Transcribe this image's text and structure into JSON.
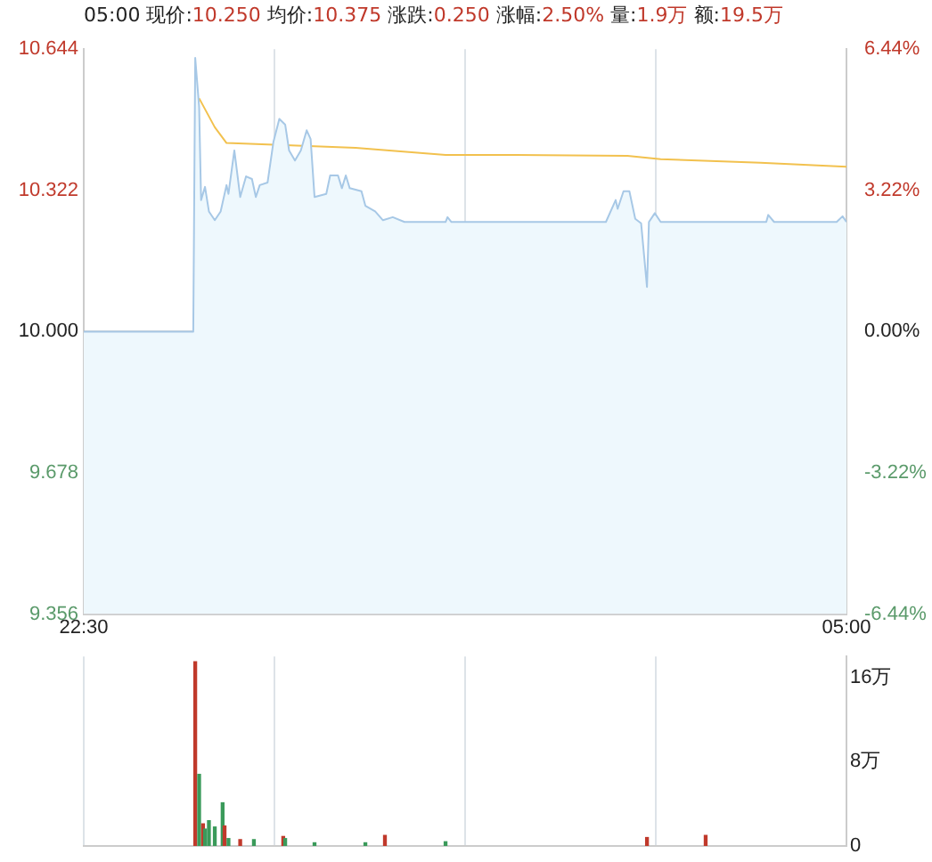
{
  "chart_data": [
    {
      "type": "line",
      "title": "05:00 现价:10.250 均价:10.375 涨跌:0.250 涨幅:2.50% 量:1.9万 额:19.5万",
      "series": [
        {
          "type": "area",
          "color": "#a7c8e6",
          "x": [
            "2000-01-01T22:30",
            "2000-01-01T23:26",
            "2000-01-01T23:27",
            "2000-01-01T23:29",
            "2000-01-01T23:30",
            "2000-01-01T23:32",
            "2000-01-01T23:34",
            "2000-01-01T23:37",
            "2000-01-01T23:40",
            "2000-01-01T23:43",
            "2000-01-01T23:44",
            "2000-01-01T23:47",
            "2000-01-01T23:50",
            "2000-01-01T23:53",
            "2000-01-01T23:56",
            "2000-01-01T23:58",
            "2000-01-02T00:00",
            "2000-01-02T00:04",
            "2000-01-02T00:07",
            "2000-01-02T00:10",
            "2000-01-02T00:13",
            "2000-01-02T00:15",
            "2000-01-02T00:18",
            "2000-01-02T00:21",
            "2000-01-02T00:24",
            "2000-01-02T00:26",
            "2000-01-02T00:28",
            "2000-01-02T00:34",
            "2000-01-02T00:36",
            "2000-01-02T00:40",
            "2000-01-02T00:42",
            "2000-01-02T00:44",
            "2000-01-02T00:46",
            "2000-01-02T00:52",
            "2000-01-02T00:54",
            "2000-01-02T00:59",
            "2000-01-02T01:03",
            "2000-01-02T01:08",
            "2000-01-02T01:14",
            "2000-01-02T01:35",
            "2000-01-02T01:36",
            "2000-01-02T01:38",
            "2000-01-02T02:30",
            "2000-01-02T02:57",
            "2000-01-02T03:02",
            "2000-01-02T03:03",
            "2000-01-02T03:06",
            "2000-01-02T03:09",
            "2000-01-02T03:12",
            "2000-01-02T03:15",
            "2000-01-02T03:18",
            "2000-01-02T03:19",
            "2000-01-02T03:22",
            "2000-01-02T03:25",
            "2000-01-02T04:19",
            "2000-01-02T04:20",
            "2000-01-02T04:23",
            "2000-01-02T04:55",
            "2000-01-02T04:58",
            "2000-01-02T05:00"
          ],
          "values": [
            10.0,
            10.0,
            10.624,
            10.512,
            10.3,
            10.33,
            10.274,
            10.254,
            10.274,
            10.334,
            10.314,
            10.413,
            10.307,
            10.354,
            10.348,
            10.307,
            10.334,
            10.34,
            10.433,
            10.485,
            10.472,
            10.413,
            10.39,
            10.413,
            10.459,
            10.439,
            10.307,
            10.314,
            10.356,
            10.356,
            10.327,
            10.356,
            10.327,
            10.32,
            10.287,
            10.274,
            10.254,
            10.261,
            10.25,
            10.25,
            10.261,
            10.25,
            10.25,
            10.25,
            10.3,
            10.28,
            10.32,
            10.32,
            10.257,
            10.247,
            10.102,
            10.25,
            10.27,
            10.25,
            10.25,
            10.266,
            10.25,
            10.25,
            10.263,
            10.25
          ]
        },
        {
          "type": "line",
          "color": "#f2c14e",
          "x": [
            "2000-01-01T23:29",
            "2000-01-01T23:37",
            "2000-01-01T23:43",
            "2000-01-02T00:07",
            "2000-01-02T00:49",
            "2000-01-02T01:35",
            "2000-01-02T02:11",
            "2000-01-02T03:08",
            "2000-01-02T03:25",
            "2000-01-02T04:16",
            "2000-01-02T05:00"
          ],
          "values": [
            10.532,
            10.466,
            10.43,
            10.426,
            10.419,
            10.403,
            10.403,
            10.401,
            10.393,
            10.385,
            10.376
          ]
        }
      ],
      "xlim": [
        "2000-01-01T22:30",
        "2000-01-02T05:00"
      ],
      "xticks": [
        {
          "value": "2000-01-01T22:30",
          "label": "22:30"
        },
        {
          "value": "2000-01-02T00:07:30",
          "label": null
        },
        {
          "value": "2000-01-02T01:45",
          "label": null
        },
        {
          "value": "2000-01-02T03:22:30",
          "label": null
        },
        {
          "value": "2000-01-02T05:00",
          "label": "05:00"
        }
      ],
      "ylim": [
        9.356,
        10.644
      ],
      "yticks": [
        9.356,
        9.678,
        {
          "value": 10,
          "label": "10.000"
        },
        10.322,
        10.644
      ],
      "y2lim": [
        -6.44,
        6.44
      ],
      "y2ticks": [
        {
          "value": -6.44,
          "label": "-6.44%"
        },
        {
          "value": -3.22,
          "label": "-3.22%"
        },
        {
          "value": 0,
          "label": "0.00%"
        },
        {
          "value": 3.22,
          "label": "3.22%"
        },
        {
          "value": 6.44,
          "label": "6.44%"
        }
      ],
      "ref_lines": [
        {
          "axis": "y",
          "value": 10.0,
          "color": "#aaaaaa"
        }
      ],
      "grid": "x",
      "legend": false,
      "marker": "none"
    },
    {
      "type": "bar",
      "x": [
        "2000-01-01T23:27",
        "2000-01-01T23:29",
        "2000-01-01T23:31",
        "2000-01-01T23:32",
        "2000-01-01T23:34",
        "2000-01-01T23:37",
        "2000-01-01T23:41",
        "2000-01-01T23:42",
        "2000-01-01T23:44",
        "2000-01-01T23:50",
        "2000-01-01T23:57",
        "2000-01-02T00:12",
        "2000-01-02T00:13",
        "2000-01-02T00:28",
        "2000-01-02T00:54",
        "2000-01-02T01:04",
        "2000-01-02T01:35",
        "2000-01-02T03:18",
        "2000-01-02T03:48"
      ],
      "values": [
        17.5,
        6.8,
        2.1,
        1.6,
        2.4,
        1.8,
        4.1,
        1.9,
        0.7,
        0.6,
        0.6,
        0.9,
        0.7,
        0.3,
        0.3,
        1.0,
        0.4,
        0.8,
        1.0
      ],
      "colors": [
        "#c0392b",
        "#3a9a5a",
        "#c0392b",
        "#3a9a5a",
        "#3a9a5a",
        "#3a9a5a",
        "#3a9a5a",
        "#c0392b",
        "#3a9a5a",
        "#c0392b",
        "#3a9a5a",
        "#c0392b",
        "#3a9a5a",
        "#3a9a5a",
        "#3a9a5a",
        "#c0392b",
        "#3a9a5a",
        "#c0392b",
        "#c0392b"
      ],
      "xlim": [
        "2000-01-01T22:30",
        "2000-01-02T05:00"
      ],
      "xticks": [
        {
          "value": "2000-01-01T22:30",
          "label": null
        },
        {
          "value": "2000-01-02T00:07:30",
          "label": null
        },
        {
          "value": "2000-01-02T01:45",
          "label": null
        },
        {
          "value": "2000-01-02T03:22:30",
          "label": null
        },
        {
          "value": "2000-01-02T05:00",
          "label": null
        }
      ],
      "ylim": [
        0,
        18
      ],
      "yticks": [
        0,
        {
          "value": 8,
          "label": "8万"
        },
        {
          "value": 16,
          "label": "16万"
        }
      ],
      "tick_labels": "y",
      "grid": "x",
      "legend": false
    }
  ]
}
